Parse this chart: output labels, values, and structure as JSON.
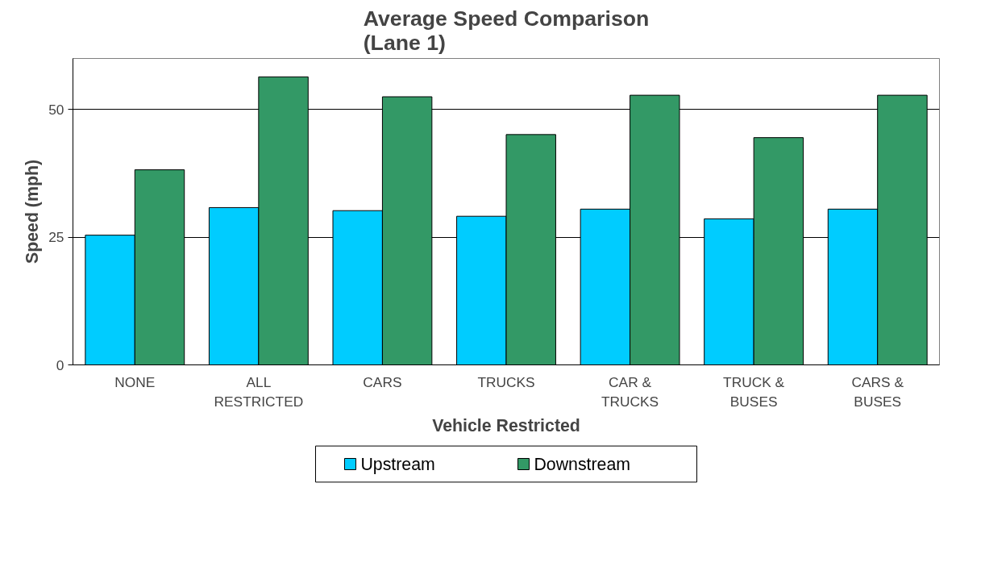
{
  "chart_data": {
    "type": "bar",
    "title": "Average Speed Comparison\n(Lane 1)",
    "xlabel": "Vehicle Restricted",
    "ylabel": "Speed (mph)",
    "categories": [
      "NONE",
      "ALL RESTRICTED",
      "CARS",
      "TRUCKS",
      "CAR & TRUCKS",
      "TRUCK & BUSES",
      "CARS & BUSES"
    ],
    "series": [
      {
        "name": "Upstream",
        "color": "#00ccff",
        "values": [
          25.4,
          30.8,
          30.2,
          29.1,
          30.5,
          28.6,
          30.5
        ]
      },
      {
        "name": "Downstream",
        "color": "#339966",
        "values": [
          38.2,
          56.4,
          52.5,
          45.1,
          52.8,
          44.5,
          52.8
        ]
      }
    ],
    "ylim": [
      0,
      60
    ],
    "yticks": [
      0,
      25,
      50
    ],
    "grid": "y",
    "legend": "bottom"
  }
}
